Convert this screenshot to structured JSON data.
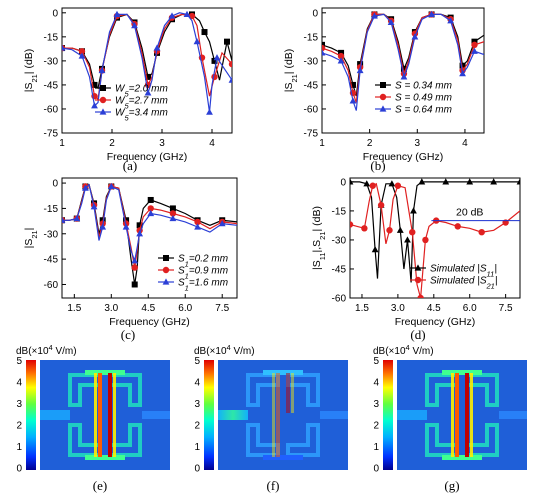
{
  "chart_data": [
    {
      "id": "a",
      "type": "line",
      "caption": "(a)",
      "xlabel": "Frequency (GHz)",
      "ylabel_main": "|S",
      "ylabel_sub": "21",
      "ylabel_tail": "| (dB)",
      "xlim": [
        1,
        4.4
      ],
      "ylim": [
        -75,
        3
      ],
      "xticks": [
        1,
        2,
        3,
        4
      ],
      "yticks": [
        0,
        -15,
        -30,
        -45,
        -60,
        -75
      ],
      "legend_position": "bottom-center",
      "series": [
        {
          "name_main": "W",
          "name_sub": "5",
          "name_tail": "=2.0 mm",
          "color": "#000000",
          "marker": "square",
          "x": [
            1.0,
            1.2,
            1.4,
            1.55,
            1.65,
            1.72,
            1.8,
            1.95,
            2.1,
            2.3,
            2.45,
            2.6,
            2.72,
            2.8,
            2.9,
            3.05,
            3.2,
            3.4,
            3.6,
            3.75,
            3.85,
            3.95,
            4.05,
            4.15,
            4.3,
            4.4
          ],
          "y": [
            -22,
            -22,
            -24,
            -32,
            -45,
            -47,
            -35,
            -15,
            -3,
            -1,
            -6,
            -22,
            -40,
            -38,
            -25,
            -12,
            -4,
            -1,
            -1,
            -5,
            -12,
            -18,
            -30,
            -42,
            -18,
            -30
          ]
        },
        {
          "name_main": "W",
          "name_sub": "5",
          "name_tail": "=2.7 mm",
          "color": "#e02020",
          "marker": "circle",
          "x": [
            1.0,
            1.2,
            1.4,
            1.55,
            1.65,
            1.72,
            1.8,
            1.95,
            2.1,
            2.3,
            2.45,
            2.6,
            2.72,
            2.8,
            2.9,
            3.05,
            3.2,
            3.4,
            3.6,
            3.7,
            3.8,
            3.95,
            4.05,
            4.2,
            4.4
          ],
          "y": [
            -22,
            -22,
            -24,
            -34,
            -52,
            -54,
            -36,
            -14,
            -2,
            -1,
            -7,
            -25,
            -45,
            -40,
            -24,
            -10,
            -3,
            -1,
            -2,
            -8,
            -28,
            -52,
            -40,
            -25,
            -32
          ]
        },
        {
          "name_main": "W",
          "name_sub": "5",
          "name_tail": "=3.4 mm",
          "color": "#2b3fd6",
          "marker": "triangle",
          "x": [
            1.0,
            1.2,
            1.4,
            1.55,
            1.65,
            1.72,
            1.8,
            1.95,
            2.1,
            2.3,
            2.45,
            2.6,
            2.72,
            2.8,
            2.9,
            3.05,
            3.2,
            3.35,
            3.5,
            3.6,
            3.7,
            3.85,
            3.95,
            4.0,
            4.1,
            4.25,
            4.4
          ],
          "y": [
            -22,
            -23,
            -27,
            -40,
            -58,
            -56,
            -36,
            -12,
            -1,
            -1,
            -8,
            -28,
            -50,
            -42,
            -22,
            -8,
            -2,
            0,
            -1,
            -5,
            -18,
            -40,
            -62,
            -45,
            -28,
            -35,
            -42
          ]
        }
      ]
    },
    {
      "id": "b",
      "type": "line",
      "caption": "(b)",
      "xlabel": "Frequency (GHz)",
      "ylabel_main": "|S",
      "ylabel_sub": "21",
      "ylabel_tail": "| (dB)",
      "xlim": [
        1,
        4.4
      ],
      "ylim": [
        -75,
        3
      ],
      "xticks": [
        1,
        2,
        3,
        4
      ],
      "yticks": [
        0,
        -15,
        -30,
        -45,
        -60,
        -75
      ],
      "legend_position": "bottom-right",
      "series": [
        {
          "name_main": "S",
          "name_sub": "",
          "name_tail": " = 0.34 mm",
          "color": "#000000",
          "marker": "square",
          "x": [
            1.0,
            1.2,
            1.4,
            1.55,
            1.65,
            1.72,
            1.8,
            1.95,
            2.1,
            2.3,
            2.45,
            2.6,
            2.72,
            2.82,
            2.95,
            3.1,
            3.3,
            3.5,
            3.7,
            3.85,
            3.95,
            4.05,
            4.2,
            4.4
          ],
          "y": [
            -20,
            -22,
            -25,
            -33,
            -45,
            -52,
            -32,
            -10,
            -1,
            -1,
            -4,
            -18,
            -35,
            -28,
            -12,
            -3,
            -1,
            -1,
            -3,
            -15,
            -33,
            -30,
            -18,
            -14
          ]
        },
        {
          "name_main": "S",
          "name_sub": "",
          "name_tail": " = 0.49 mm",
          "color": "#e02020",
          "marker": "circle",
          "x": [
            1.0,
            1.2,
            1.4,
            1.55,
            1.65,
            1.72,
            1.8,
            1.95,
            2.1,
            2.3,
            2.45,
            2.6,
            2.72,
            2.82,
            2.95,
            3.1,
            3.3,
            3.5,
            3.7,
            3.85,
            3.95,
            4.05,
            4.2,
            4.4
          ],
          "y": [
            -22,
            -24,
            -27,
            -36,
            -50,
            -56,
            -34,
            -11,
            -1,
            -1,
            -5,
            -20,
            -38,
            -30,
            -13,
            -3,
            -1,
            -1,
            -4,
            -17,
            -36,
            -32,
            -20,
            -18
          ]
        },
        {
          "name_main": "S",
          "name_sub": "",
          "name_tail": " = 0.64 mm",
          "color": "#2b3fd6",
          "marker": "triangle",
          "x": [
            1.0,
            1.2,
            1.4,
            1.55,
            1.65,
            1.72,
            1.8,
            1.95,
            2.1,
            2.3,
            2.45,
            2.6,
            2.72,
            2.82,
            2.95,
            3.1,
            3.3,
            3.5,
            3.7,
            3.85,
            3.95,
            4.05,
            4.2,
            4.4
          ],
          "y": [
            -25,
            -27,
            -30,
            -40,
            -55,
            -61,
            -36,
            -12,
            -2,
            -1,
            -6,
            -23,
            -40,
            -32,
            -15,
            -4,
            -1,
            -1,
            -5,
            -20,
            -38,
            -34,
            -24,
            -26
          ]
        }
      ]
    },
    {
      "id": "c",
      "type": "line",
      "caption": "(c)",
      "xlabel": "Frequency (GHz)",
      "ylabel_main": "|S",
      "ylabel_sub": "21",
      "ylabel_tail": "|",
      "xlim": [
        1,
        8.1
      ],
      "ylim": [
        -68,
        3
      ],
      "xticks": [
        1.5,
        3.0,
        4.5,
        6.0,
        7.5
      ],
      "yticks": [
        0,
        -15,
        -30,
        -45,
        -60
      ],
      "legend_position": "bottom-right",
      "series": [
        {
          "name_main": "S",
          "name_sub": "1",
          "name_tail": "=0.2 mm",
          "color": "#000000",
          "marker": "square",
          "x": [
            1.0,
            1.3,
            1.6,
            1.8,
            1.95,
            2.1,
            2.3,
            2.5,
            2.65,
            2.8,
            3.0,
            3.3,
            3.6,
            3.8,
            3.95,
            4.05,
            4.15,
            4.3,
            4.6,
            5.0,
            5.5,
            6.0,
            6.5,
            7.0,
            7.5,
            8.1
          ],
          "y": [
            -22,
            -22,
            -21,
            -10,
            -2,
            -1,
            -12,
            -30,
            -22,
            -8,
            -2,
            -3,
            -22,
            -45,
            -60,
            -50,
            -25,
            -15,
            -10,
            -12,
            -15,
            -18,
            -22,
            -25,
            -22,
            -23
          ]
        },
        {
          "name_main": "S",
          "name_sub": "1",
          "name_tail": "=0.9 mm",
          "color": "#e02020",
          "marker": "circle",
          "x": [
            1.0,
            1.3,
            1.6,
            1.8,
            1.95,
            2.1,
            2.3,
            2.5,
            2.65,
            2.8,
            3.0,
            3.3,
            3.6,
            3.8,
            3.95,
            4.05,
            4.15,
            4.3,
            4.6,
            5.0,
            5.5,
            6.0,
            6.5,
            7.0,
            7.5,
            8.1
          ],
          "y": [
            -22,
            -22,
            -21,
            -11,
            -2,
            -1,
            -13,
            -32,
            -24,
            -9,
            -2,
            -3,
            -24,
            -38,
            -50,
            -40,
            -28,
            -20,
            -15,
            -16,
            -18,
            -20,
            -23,
            -27,
            -23,
            -24
          ]
        },
        {
          "name_main": "S",
          "name_sub": "1",
          "name_tail": "=1.6 mm",
          "color": "#2b3fd6",
          "marker": "triangle",
          "x": [
            1.0,
            1.3,
            1.6,
            1.8,
            1.95,
            2.1,
            2.3,
            2.5,
            2.65,
            2.8,
            3.0,
            3.3,
            3.6,
            3.8,
            3.95,
            4.05,
            4.15,
            4.3,
            4.6,
            5.0,
            5.5,
            6.0,
            6.5,
            7.0,
            7.5,
            8.1
          ],
          "y": [
            -22,
            -22,
            -21,
            -12,
            -3,
            -1,
            -14,
            -34,
            -26,
            -10,
            -2,
            -4,
            -26,
            -40,
            -46,
            -38,
            -30,
            -24,
            -18,
            -19,
            -21,
            -23,
            -26,
            -29,
            -24,
            -25
          ]
        }
      ]
    },
    {
      "id": "d",
      "type": "line",
      "caption": "(d)",
      "xlabel": "Frequency (GHz)",
      "ylabel_main": "|S",
      "ylabel_sub": "11",
      "ylabel_mid": "|,S",
      "ylabel_sub2": "21",
      "ylabel_tail": "| (dB)",
      "xlim": [
        1,
        8.1
      ],
      "ylim": [
        -60,
        2
      ],
      "xticks": [
        1.5,
        3.0,
        4.5,
        6.0,
        7.5
      ],
      "yticks": [
        0,
        -15,
        -30,
        -45,
        -60
      ],
      "legend_position": "bottom-right",
      "annotation": "20 dB",
      "series": [
        {
          "name_main": "Simulated |S",
          "name_sub": "11",
          "name_tail": "|",
          "color": "#000000",
          "marker": "triangle",
          "x": [
            1.0,
            1.4,
            1.7,
            1.9,
            2.05,
            2.15,
            2.3,
            2.5,
            2.75,
            2.95,
            3.1,
            3.25,
            3.4,
            3.55,
            3.65,
            3.8,
            4.0,
            4.5,
            5.0,
            5.5,
            6.0,
            6.5,
            7.0,
            7.5,
            8.1
          ],
          "y": [
            0,
            0,
            -1,
            -8,
            -35,
            -50,
            -12,
            -1,
            -1,
            -8,
            -25,
            -45,
            -30,
            -52,
            -15,
            -2,
            0,
            0,
            0,
            0,
            0,
            0,
            0,
            0,
            0
          ]
        },
        {
          "name_main": "Simulated |S",
          "name_sub": "21",
          "name_tail": "|",
          "color": "#e02020",
          "marker": "circle",
          "x": [
            1.0,
            1.3,
            1.6,
            1.8,
            1.95,
            2.1,
            2.3,
            2.5,
            2.65,
            2.8,
            3.0,
            3.3,
            3.6,
            3.8,
            3.95,
            4.05,
            4.15,
            4.3,
            4.6,
            5.0,
            5.5,
            6.0,
            6.5,
            7.0,
            7.5,
            8.1
          ],
          "y": [
            -22,
            -23,
            -24,
            -10,
            -2,
            -1,
            -12,
            -32,
            -25,
            -9,
            -2,
            -3,
            -26,
            -53,
            -60,
            -45,
            -30,
            -23,
            -20,
            -21,
            -23,
            -24,
            -26,
            -25,
            -21,
            -15
          ]
        }
      ]
    }
  ],
  "field_maps": [
    {
      "id": "e",
      "caption": "(e)",
      "unit_label": "dB(×10",
      "unit_exp": "4",
      "unit_tail": " V/m)",
      "scale_ticks": [
        "5",
        "4",
        "3",
        "2",
        "1",
        "0"
      ]
    },
    {
      "id": "f",
      "caption": "(f)",
      "unit_label": "dB(×10",
      "unit_exp": "4",
      "unit_tail": " V/m)",
      "scale_ticks": [
        "5",
        "4",
        "3",
        "2",
        "1",
        "0"
      ]
    },
    {
      "id": "g",
      "caption": "(g)",
      "unit_label": "dB(×10",
      "unit_exp": "4",
      "unit_tail": " V/m)",
      "scale_ticks": [
        "5",
        "4",
        "3",
        "2",
        "1",
        "0"
      ]
    }
  ],
  "colors": {
    "axis": "#000000",
    "field_bg": "#1f5fd8"
  }
}
